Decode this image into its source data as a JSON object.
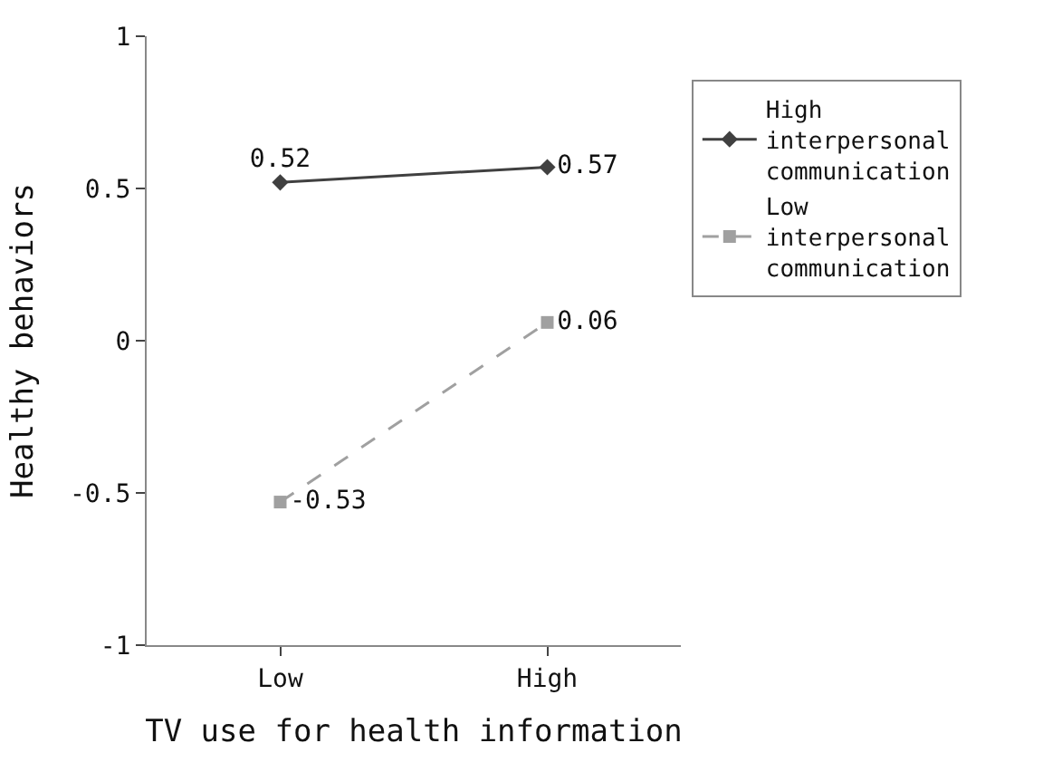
{
  "chart_data": {
    "type": "line",
    "xlabel": "TV use for health information",
    "ylabel": "Healthy behaviors",
    "categories": [
      "Low",
      "High"
    ],
    "series": [
      {
        "name": "High interpersonal communication",
        "color": "#404040",
        "values": [
          0.52,
          0.57
        ],
        "marker": "diamond",
        "line_style": "solid"
      },
      {
        "name": "Low interpersonal communication",
        "color": "#a0a0a0",
        "values": [
          -0.53,
          0.06
        ],
        "marker": "square",
        "line_style": "dashed"
      }
    ],
    "ylim": [
      -1,
      1
    ],
    "yticks": [
      -1,
      -0.5,
      0,
      0.5,
      1
    ],
    "data_labels": true,
    "legend": "right"
  }
}
